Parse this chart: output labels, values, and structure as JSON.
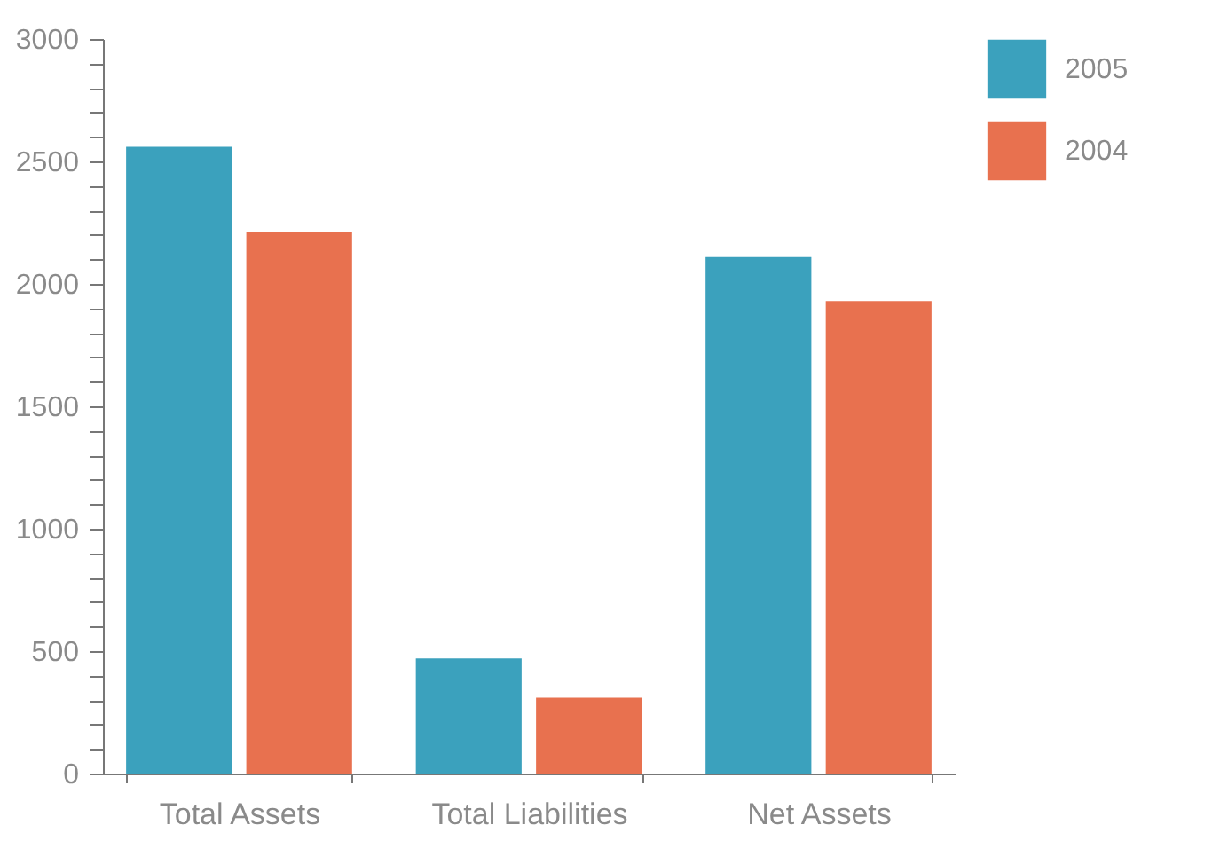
{
  "chart_data": {
    "type": "bar",
    "categories": [
      "Total Assets",
      "Total Liabilities",
      "Net Assets"
    ],
    "series": [
      {
        "name": "2005",
        "color": "#3ba1bd",
        "values": [
          2560,
          470,
          2110
        ]
      },
      {
        "name": "2004",
        "color": "#e8714f",
        "values": [
          2210,
          310,
          1930
        ]
      }
    ],
    "ylim": [
      0,
      3000
    ],
    "yticks": [
      0,
      {
        "value": 100,
        "label": null
      },
      {
        "value": 200,
        "label": null
      },
      {
        "value": 300,
        "label": null
      },
      {
        "value": 400,
        "label": null
      },
      500,
      {
        "value": 600,
        "label": null
      },
      {
        "value": 700,
        "label": null
      },
      {
        "value": 800,
        "label": null
      },
      {
        "value": 900,
        "label": null
      },
      1000,
      {
        "value": 1100,
        "label": null
      },
      {
        "value": 1200,
        "label": null
      },
      {
        "value": 1300,
        "label": null
      },
      {
        "value": 1400,
        "label": null
      },
      1500,
      {
        "value": 1600,
        "label": null
      },
      {
        "value": 1700,
        "label": null
      },
      {
        "value": 1800,
        "label": null
      },
      {
        "value": 1900,
        "label": null
      },
      2000,
      {
        "value": 2100,
        "label": null
      },
      {
        "value": 2200,
        "label": null
      },
      {
        "value": 2300,
        "label": null
      },
      {
        "value": 2400,
        "label": null
      },
      2500,
      {
        "value": 2600,
        "label": null
      },
      {
        "value": 2700,
        "label": null
      },
      {
        "value": 2800,
        "label": null
      },
      {
        "value": 2900,
        "label": null
      },
      3000
    ],
    "grid": false,
    "legend": "top right"
  }
}
